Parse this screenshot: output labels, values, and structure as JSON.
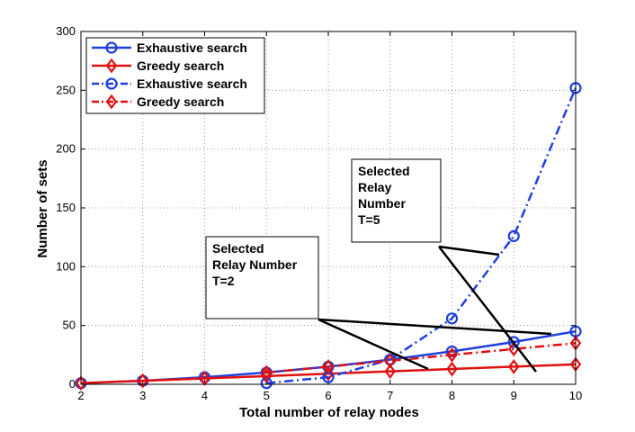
{
  "chart_data": {
    "type": "line",
    "xlabel": "Total number of relay nodes",
    "ylabel": "Number of sets",
    "xlim": [
      2,
      10
    ],
    "ylim": [
      0,
      300
    ],
    "xticks": [
      "2",
      "3",
      "4",
      "5",
      "6",
      "7",
      "8",
      "9",
      "10"
    ],
    "yticks": [
      "0",
      "50",
      "100",
      "150",
      "200",
      "250",
      "300"
    ],
    "grid": true,
    "legend_position": "top-left",
    "series": [
      {
        "name": "Exhaustive search",
        "color": "#1f3fe0",
        "marker": "circle",
        "linestyle": "solid",
        "x": [
          2,
          3,
          4,
          5,
          6,
          7,
          8,
          9,
          10
        ],
        "y": [
          1,
          3,
          6,
          10,
          15,
          21,
          28,
          36,
          45
        ]
      },
      {
        "name": "Greedy search",
        "color": "#e01010",
        "marker": "diamond",
        "linestyle": "solid",
        "x": [
          2,
          3,
          4,
          5,
          6,
          7,
          8,
          9,
          10
        ],
        "y": [
          1,
          3,
          5,
          7,
          9,
          11,
          13,
          15,
          17
        ]
      },
      {
        "name": "Exhaustive search",
        "color": "#1f3fe0",
        "marker": "circle",
        "linestyle": "dashdot",
        "x": [
          5,
          6,
          7,
          8,
          9,
          10
        ],
        "y": [
          1,
          6,
          21,
          56,
          126,
          252
        ]
      },
      {
        "name": "Greedy search",
        "color": "#e01010",
        "marker": "diamond",
        "linestyle": "dashdot",
        "x": [
          5,
          6,
          7,
          8,
          9,
          10
        ],
        "y": [
          10,
          15,
          20,
          25,
          30,
          35
        ]
      }
    ],
    "annotations": [
      {
        "lines": [
          "Selected",
          "Relay Number",
          "T=2"
        ]
      },
      {
        "lines": [
          "Selected",
          "Relay",
          "Number",
          "T=5"
        ]
      }
    ]
  }
}
